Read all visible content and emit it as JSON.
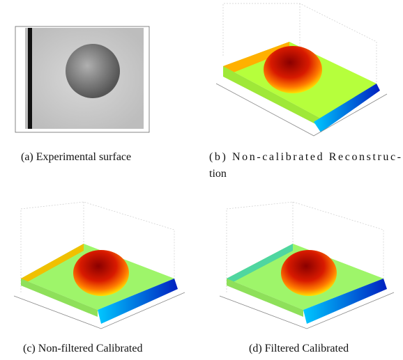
{
  "figure": {
    "panels": [
      {
        "caption": [
          "(a) Experimental surface"
        ]
      },
      {
        "caption": [
          "(b) Non-calibrated Reconstruc-",
          "tion"
        ]
      },
      {
        "caption": [
          "(c) Non-filtered Calibrated"
        ]
      },
      {
        "caption": [
          "(d) Filtered Calibrated"
        ]
      }
    ]
  }
}
